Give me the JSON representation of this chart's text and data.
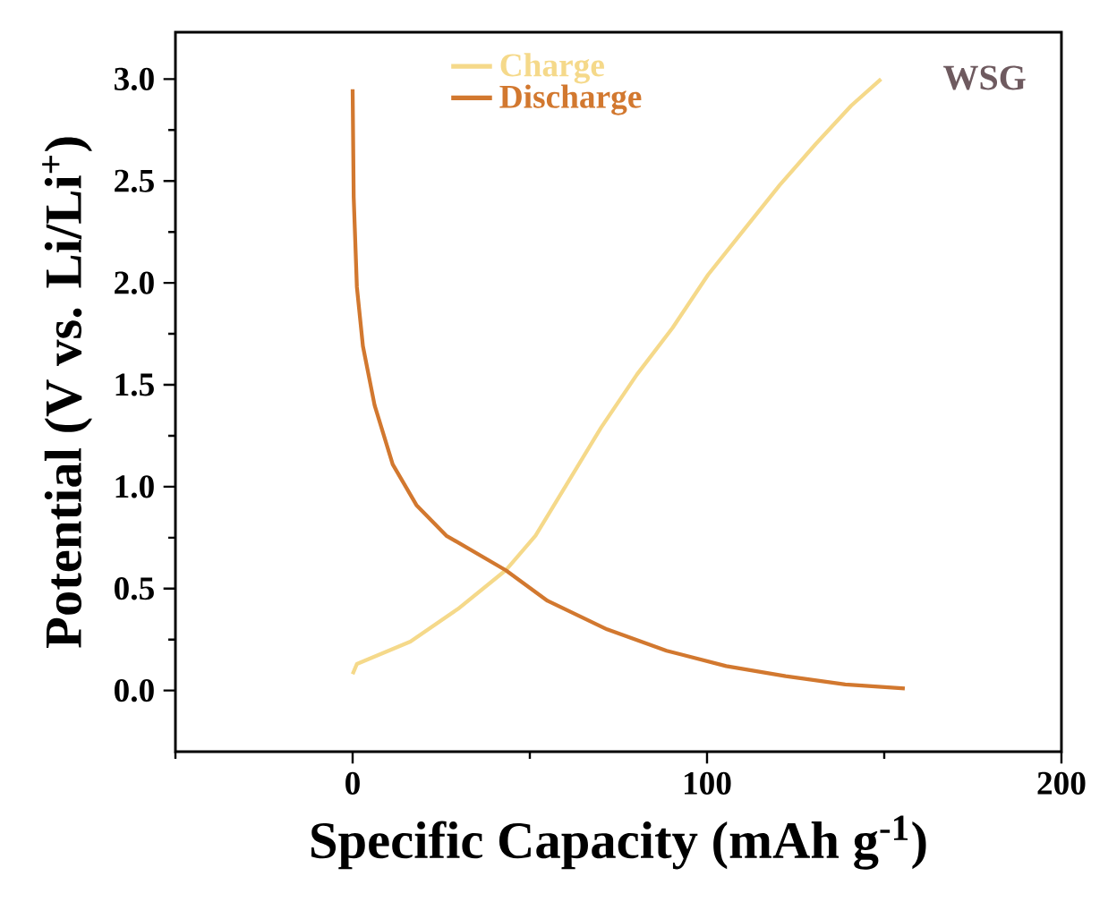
{
  "chart_data": {
    "type": "line",
    "xlabel": "Specific Capacity (mAh g$^{-1}$)",
    "ylabel": "Potential (V vs. Li/Li$^{+}$)",
    "xlim": [
      -50,
      200
    ],
    "ylim": [
      -0.3,
      3.23
    ],
    "xticks": [
      {
        "value": -50,
        "label": null
      },
      0,
      {
        "value": 50,
        "label": null
      },
      100,
      {
        "value": 150,
        "label": null
      },
      200
    ],
    "yticks": [
      {
        "value": 0,
        "label": "0.0"
      },
      {
        "value": 0.25,
        "label": null
      },
      0.5,
      {
        "value": 0.75,
        "label": null
      },
      {
        "value": 1,
        "label": "1.0"
      },
      {
        "value": 1.25,
        "label": null
      },
      1.5,
      {
        "value": 1.75,
        "label": null
      },
      {
        "value": 2,
        "label": "2.0"
      },
      {
        "value": 2.25,
        "label": null
      },
      2.5,
      {
        "value": 2.75,
        "label": null
      },
      {
        "value": 3,
        "label": "3.0"
      }
    ],
    "legend": "top",
    "annotations": [
      "WSG"
    ],
    "series": [
      {
        "name": "Charge",
        "color": "#f5d98a",
        "x": [
          0,
          1.2,
          16.3,
          29.7,
          43.2,
          51.6,
          60.0,
          70.1,
          80.2,
          90.3,
          100.3,
          110.4,
          120.5,
          130.6,
          140.7,
          149.1
        ],
        "values": [
          0.08,
          0.13,
          0.24,
          0.4,
          0.59,
          0.76,
          1.0,
          1.29,
          1.55,
          1.78,
          2.04,
          2.26,
          2.48,
          2.68,
          2.87,
          3.0
        ]
      },
      {
        "name": "Discharge",
        "color": "#d2782f",
        "x": [
          0,
          0.3,
          1.2,
          2.9,
          6.2,
          11.3,
          18,
          26.4,
          43.2,
          55,
          71.8,
          88.6,
          105.4,
          122.2,
          139,
          155.8
        ],
        "values": [
          2.95,
          2.42,
          1.98,
          1.69,
          1.4,
          1.11,
          0.91,
          0.76,
          0.59,
          0.44,
          0.3,
          0.195,
          0.12,
          0.07,
          0.03,
          0.01
        ]
      }
    ]
  }
}
